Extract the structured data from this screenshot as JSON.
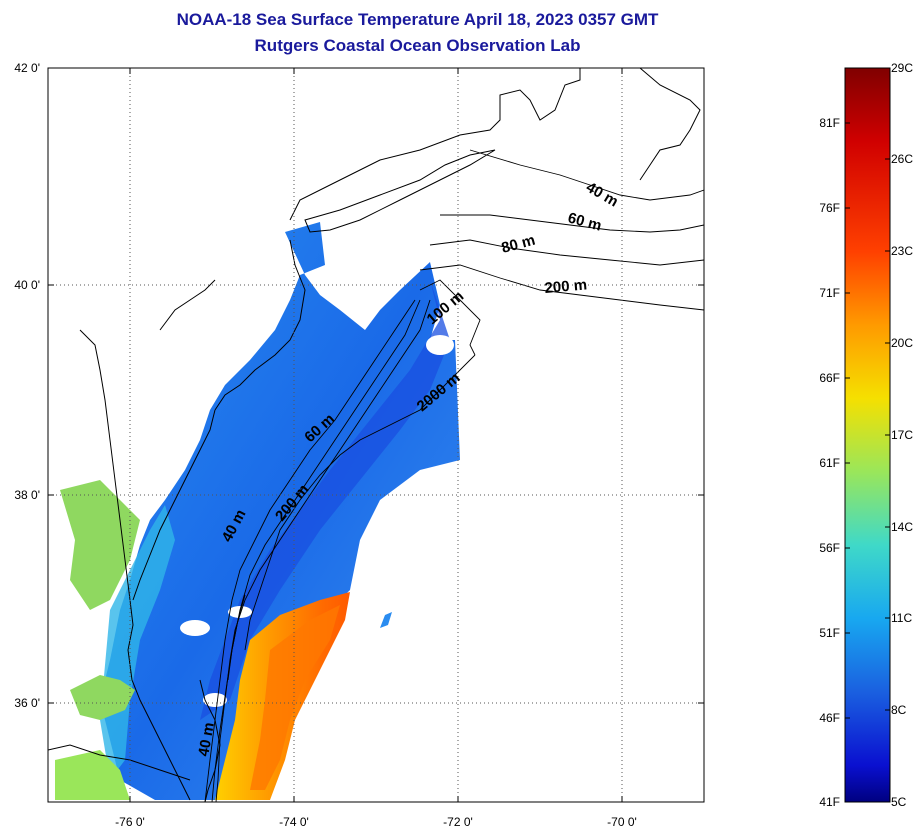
{
  "title": {
    "line1": "NOAA-18 Sea Surface Temperature April 18, 2023 0357 GMT",
    "line2": "Rutgers Coastal Ocean Observation Lab"
  },
  "axes": {
    "lat_labels": [
      "42 0'",
      "40 0'",
      "38 0'",
      "36 0'"
    ],
    "lon_labels": [
      "-76 0'",
      "-74 0'",
      "-72 0'",
      "-70 0'"
    ]
  },
  "contour_labels": [
    "40 m",
    "60 m",
    "80 m",
    "200 m",
    "100 m",
    "2000 m",
    "60 m",
    "200 m",
    "40 m",
    "40 m"
  ],
  "colorbar": {
    "fahrenheit_labels": [
      "81F",
      "76F",
      "71F",
      "66F",
      "61F",
      "56F",
      "51F",
      "46F",
      "41F"
    ],
    "celsius_labels": [
      "29C",
      "26C",
      "23C",
      "20C",
      "17C",
      "14C",
      "11C",
      "8C",
      "5C"
    ],
    "colors": [
      "#800000",
      "#d00000",
      "#ff4000",
      "#ff9a00",
      "#f5e000",
      "#9ae65a",
      "#3fd9c8",
      "#18a8f0",
      "#1a60e0",
      "#0a10d0",
      "#000080"
    ]
  }
}
